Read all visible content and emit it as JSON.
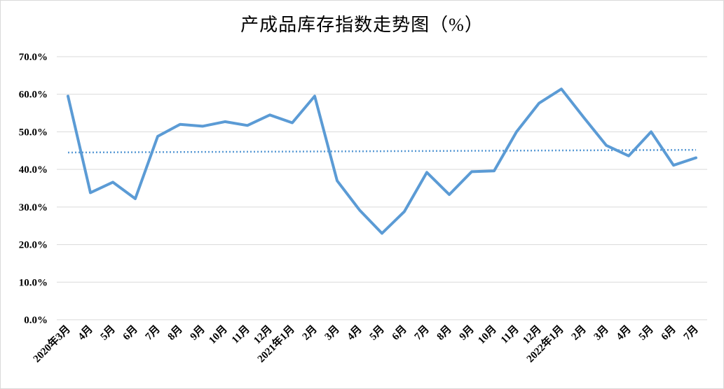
{
  "chart_data": {
    "type": "line",
    "title": "产成品库存指数走势图（%）",
    "categories": [
      "2020年3月",
      "4月",
      "5月",
      "6月",
      "7月",
      "8月",
      "9月",
      "10月",
      "11月",
      "12月",
      "2021年1月",
      "2月",
      "3月",
      "4月",
      "5月",
      "6月",
      "7月",
      "8月",
      "9月",
      "10月",
      "11月",
      "12月",
      "2022年1月",
      "2月",
      "3月",
      "4月",
      "5月",
      "6月",
      "7月"
    ],
    "series": [
      {
        "values": [
          59.5,
          33.8,
          36.6,
          32.2,
          48.8,
          52.0,
          51.5,
          52.7,
          51.7,
          54.5,
          52.4,
          59.5,
          37.0,
          29.2,
          23.0,
          28.8,
          39.2,
          33.3,
          39.4,
          39.6,
          50.0,
          57.6,
          61.4,
          53.8,
          46.4,
          43.6,
          50.0,
          41.1,
          43.1
        ],
        "color": "#5b9bd5"
      }
    ],
    "trendline": {
      "kind": "linear",
      "start": 44.5,
      "end": 45.2,
      "color": "#5b9bd5"
    },
    "ylim": [
      0,
      70
    ],
    "yticks": [
      "0.0%",
      "10.0%",
      "20.0%",
      "30.0%",
      "40.0%",
      "50.0%",
      "60.0%",
      "70.0%"
    ],
    "ytick_values": [
      0,
      10,
      20,
      30,
      40,
      50,
      60,
      70
    ],
    "grid": true,
    "xlabel": "",
    "ylabel": ""
  }
}
